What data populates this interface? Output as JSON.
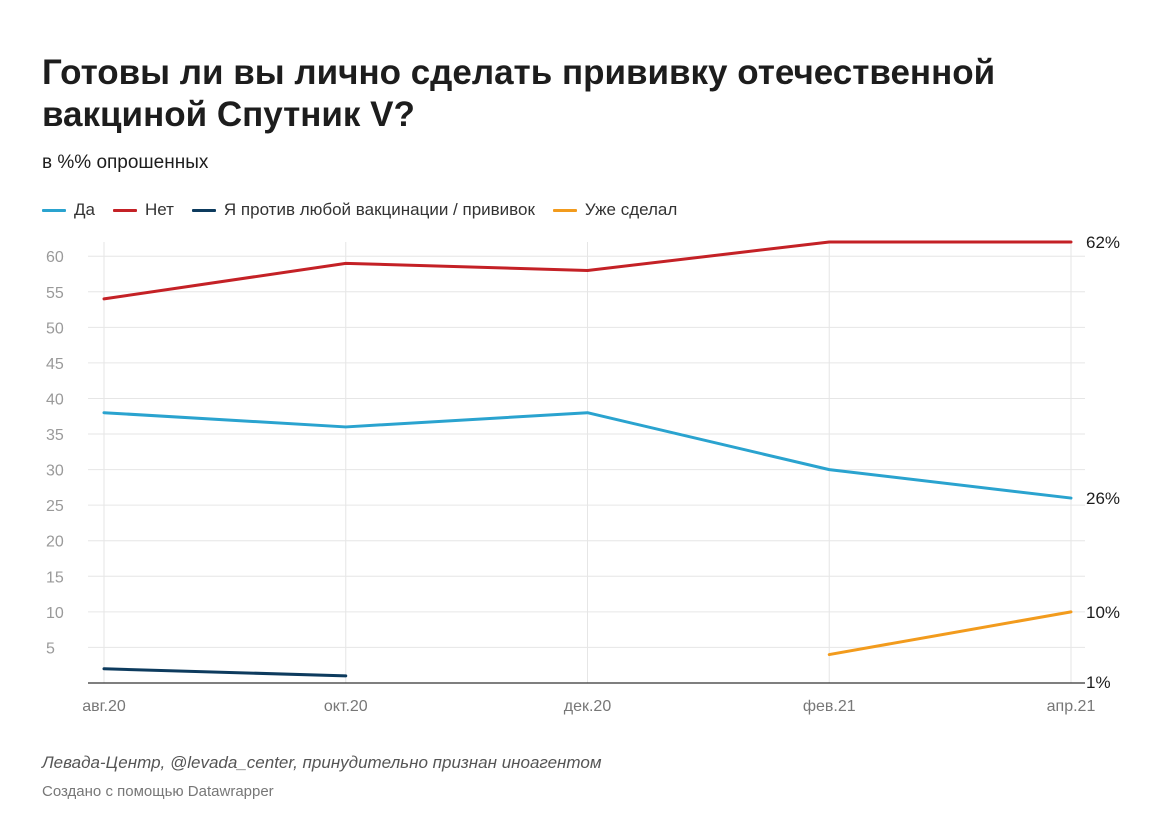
{
  "header": {
    "title": "Готовы ли вы лично сделать прививку отечественной вакциной Спутник V?",
    "subtitle": "в %% опрошенных"
  },
  "footer": {
    "source": "Левада-Центр, @levada_center, принудительно признан иноагентом",
    "credit": "Создано с помощью Datawrapper"
  },
  "chart_data": {
    "type": "line",
    "title": "Готовы ли вы лично сделать прививку отечественной вакциной Спутник V?",
    "ylabel": "в %% опрошенных",
    "xlabel": "",
    "categories": [
      "авг.20",
      "окт.20",
      "дек.20",
      "фев.21",
      "апр.21"
    ],
    "ylim": [
      0,
      62
    ],
    "yticks": [
      5,
      10,
      15,
      20,
      25,
      30,
      35,
      40,
      45,
      50,
      55,
      60
    ],
    "grid": true,
    "legend_position": "top-left",
    "series": [
      {
        "name": "Да",
        "color": "#2aa3cf",
        "values": [
          38,
          36,
          38,
          30,
          26
        ],
        "end_label": "26%"
      },
      {
        "name": "Нет",
        "color": "#c42126",
        "values": [
          54,
          59,
          58,
          62,
          62
        ],
        "end_label": "62%"
      },
      {
        "name": "Я против любой вакцинации / прививок",
        "color": "#0d3b5e",
        "values": [
          2,
          1,
          null,
          null,
          null
        ],
        "end_label": "1%"
      },
      {
        "name": "Уже сделал",
        "color": "#f29b1d",
        "values": [
          null,
          null,
          null,
          4,
          10
        ],
        "end_label": "10%"
      }
    ]
  }
}
